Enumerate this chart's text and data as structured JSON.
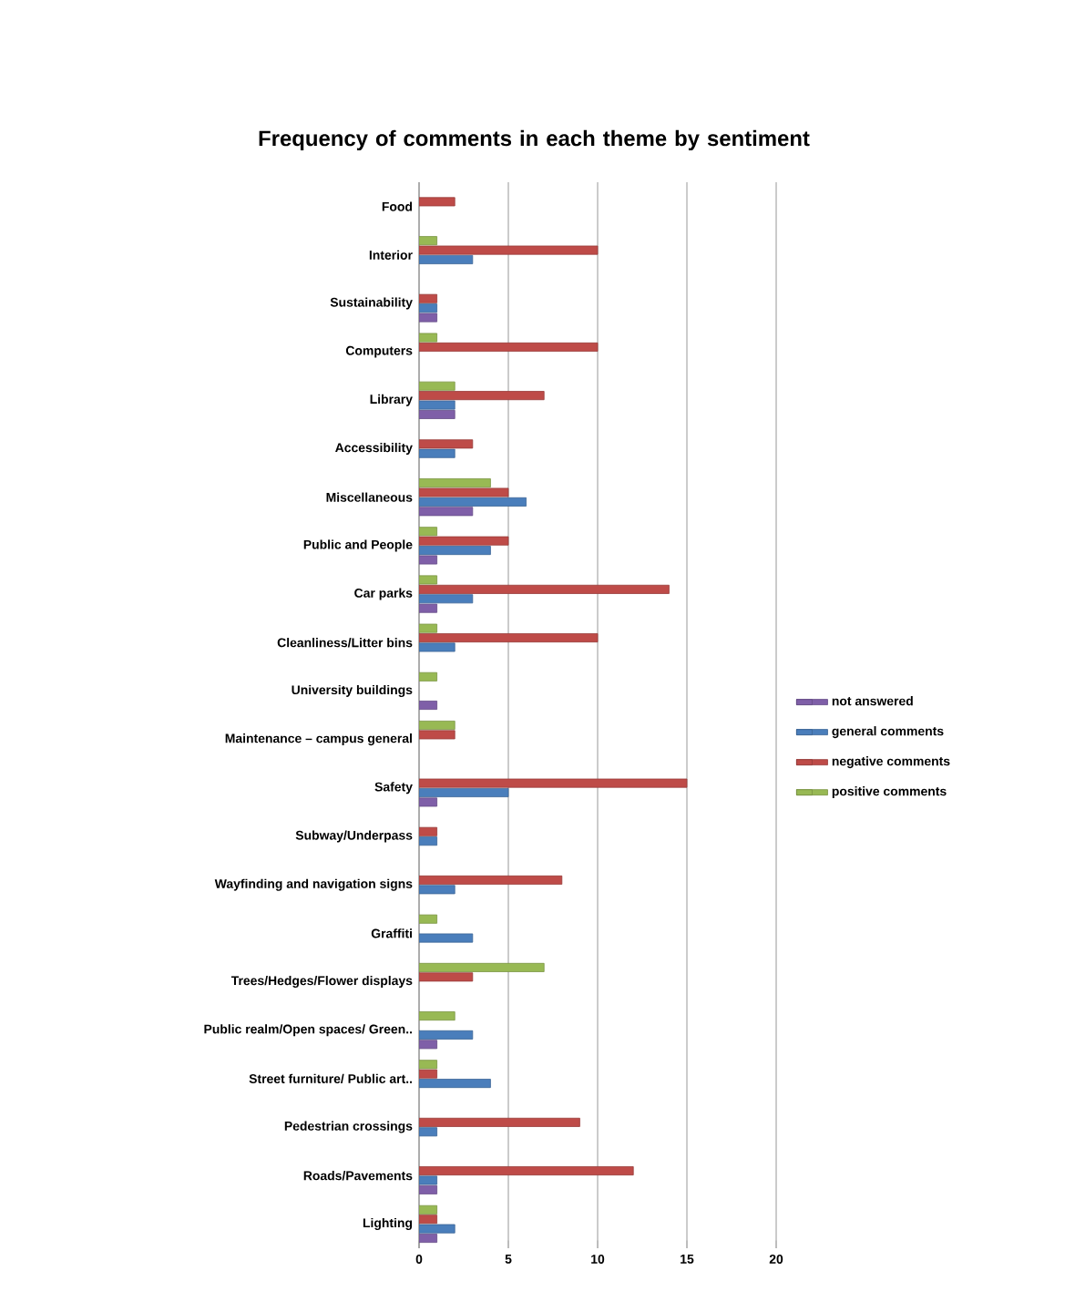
{
  "chart_data": {
    "type": "bar",
    "orientation": "horizontal",
    "title": "Frequency of comments in each theme by sentiment",
    "categories": [
      "Food",
      "Interior",
      "Sustainability",
      "Computers",
      "Library",
      "Accessibility",
      "Miscellaneous",
      "Public and People",
      "Car parks",
      "Cleanliness/Litter bins",
      "University buildings",
      "Maintenance – campus general",
      "Safety",
      "Subway/Underpass",
      "Wayfinding and navigation signs",
      "Graffiti",
      "Trees/Hedges/Flower displays",
      "Public realm/Open spaces/ Green..",
      "Street furniture/ Public art..",
      "Pedestrian crossings",
      "Roads/Pavements",
      "Lighting"
    ],
    "series": [
      {
        "name": "not answered",
        "color": "#7f5fa8",
        "values": [
          null,
          null,
          1,
          null,
          2,
          null,
          3,
          1,
          1,
          null,
          1,
          null,
          1,
          null,
          null,
          null,
          null,
          1,
          null,
          null,
          1,
          1
        ]
      },
      {
        "name": "general comments",
        "color": "#4a7ebb",
        "values": [
          null,
          3,
          1,
          null,
          2,
          2,
          6,
          4,
          3,
          2,
          null,
          null,
          5,
          1,
          2,
          3,
          null,
          3,
          4,
          1,
          1,
          2
        ]
      },
      {
        "name": "negative comments",
        "color": "#be4b48",
        "values": [
          2,
          10,
          1,
          10,
          7,
          3,
          5,
          5,
          14,
          10,
          null,
          2,
          15,
          1,
          8,
          null,
          3,
          null,
          1,
          9,
          12,
          1
        ]
      },
      {
        "name": "positive comments",
        "color": "#98b954",
        "values": [
          null,
          1,
          null,
          1,
          2,
          null,
          4,
          1,
          1,
          1,
          1,
          2,
          null,
          null,
          null,
          1,
          7,
          2,
          1,
          null,
          null,
          1
        ]
      }
    ],
    "xlim": [
      0,
      20
    ],
    "xticks": [
      0,
      5,
      10,
      15,
      20
    ],
    "grid": "x",
    "legend": "right"
  }
}
